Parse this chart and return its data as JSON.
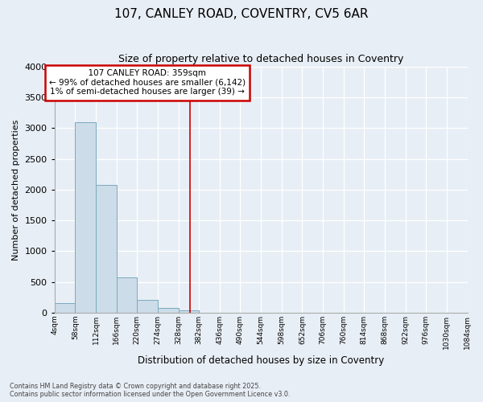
{
  "title": "107, CANLEY ROAD, COVENTRY, CV5 6AR",
  "subtitle": "Size of property relative to detached houses in Coventry",
  "xlabel": "Distribution of detached houses by size in Coventry",
  "ylabel": "Number of detached properties",
  "footer_line1": "Contains HM Land Registry data © Crown copyright and database right 2025.",
  "footer_line2": "Contains public sector information licensed under the Open Government Licence v3.0.",
  "annotation_title": "107 CANLEY ROAD: 359sqm",
  "annotation_line2": "← 99% of detached houses are smaller (6,142)",
  "annotation_line3": "1% of semi-detached houses are larger (39) →",
  "property_size": 359,
  "bar_color": "#ccdce8",
  "bar_edge_color": "#7aaabf",
  "vline_color": "#cc0000",
  "background_color": "#e8eef5",
  "grid_color": "#ffffff",
  "bin_edges": [
    4,
    58,
    112,
    166,
    220,
    274,
    328,
    382,
    436,
    490,
    544,
    598,
    652,
    706,
    760,
    814,
    868,
    922,
    976,
    1030,
    1084
  ],
  "bin_labels": [
    "4sqm",
    "58sqm",
    "112sqm",
    "166sqm",
    "220sqm",
    "274sqm",
    "328sqm",
    "382sqm",
    "436sqm",
    "490sqm",
    "544sqm",
    "598sqm",
    "652sqm",
    "706sqm",
    "760sqm",
    "814sqm",
    "868sqm",
    "922sqm",
    "976sqm",
    "1030sqm",
    "1084sqm"
  ],
  "bar_heights": [
    150,
    3100,
    2080,
    575,
    205,
    73,
    40,
    0,
    0,
    0,
    0,
    0,
    0,
    0,
    0,
    0,
    0,
    0,
    0,
    0
  ],
  "ylim": [
    0,
    4000
  ],
  "yticks": [
    0,
    500,
    1000,
    1500,
    2000,
    2500,
    3000,
    3500,
    4000
  ]
}
